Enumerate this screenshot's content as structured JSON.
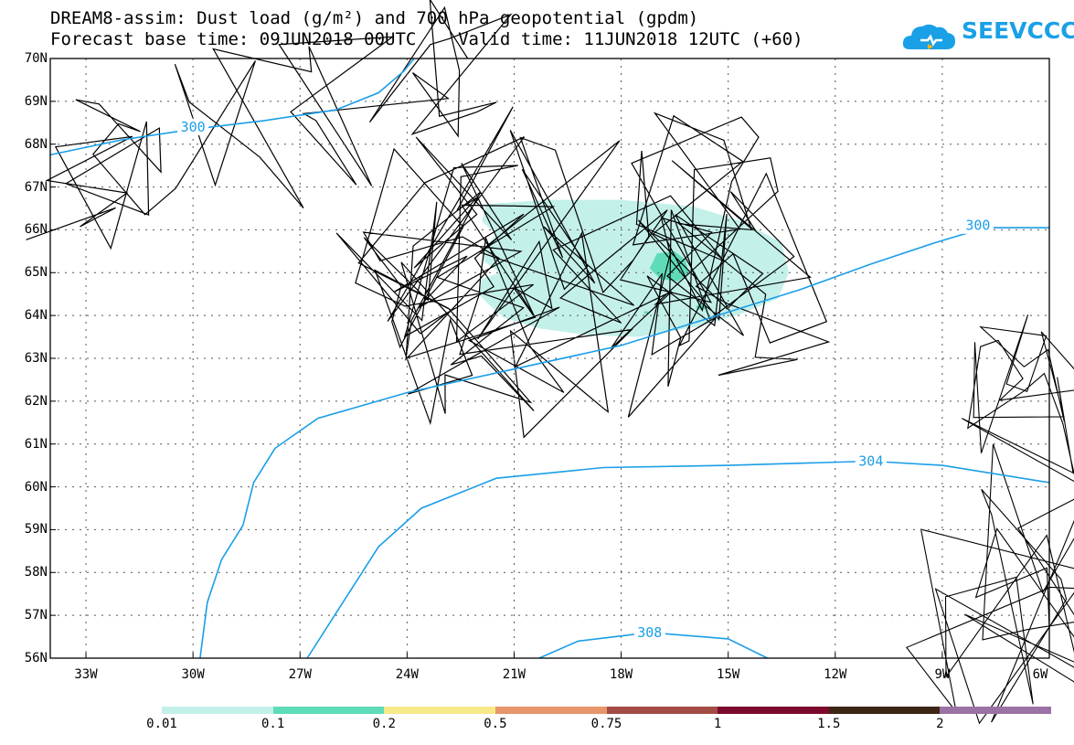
{
  "title": {
    "line1": "DREAM8-assim: Dust load (g/m²) and 700 hPa geopotential (gpdm)",
    "line2": "Forecast base time: 09JUN2018 00UTC    Valid time: 11JUN2018 12UTC (+60)"
  },
  "logo": {
    "text": "SEEVCCC",
    "color": "#1aa0e6"
  },
  "map": {
    "lat_labels": [
      "70N",
      "69N",
      "68N",
      "67N",
      "66N",
      "65N",
      "64N",
      "63N",
      "62N",
      "61N",
      "60N",
      "59N",
      "58N",
      "57N",
      "56N"
    ],
    "lon_labels": [
      "33W",
      "30W",
      "27W",
      "24W",
      "21W",
      "18W",
      "15W",
      "12W",
      "9W",
      "6W"
    ],
    "grid": "dotted",
    "contour_color": "#1a9ee8",
    "contour_labels": [
      {
        "value": "300",
        "lat": 68.4,
        "lon": -30.0
      },
      {
        "value": "300",
        "lat": 66.1,
        "lon": -8.0
      },
      {
        "value": "304",
        "lat": 60.6,
        "lon": -11.0
      },
      {
        "value": "308",
        "lat": 56.6,
        "lon": -17.2
      }
    ]
  },
  "colorbar": {
    "labels": [
      "0.01",
      "0.1",
      "0.2",
      "0.5",
      "0.75",
      "1",
      "1.5",
      "2"
    ],
    "colors": [
      "#c4f0ea",
      "#5edcb9",
      "#f8e98a",
      "#e6966a",
      "#a24c43",
      "#7c0a2c",
      "#3c2614",
      "#9a72a6"
    ]
  }
}
